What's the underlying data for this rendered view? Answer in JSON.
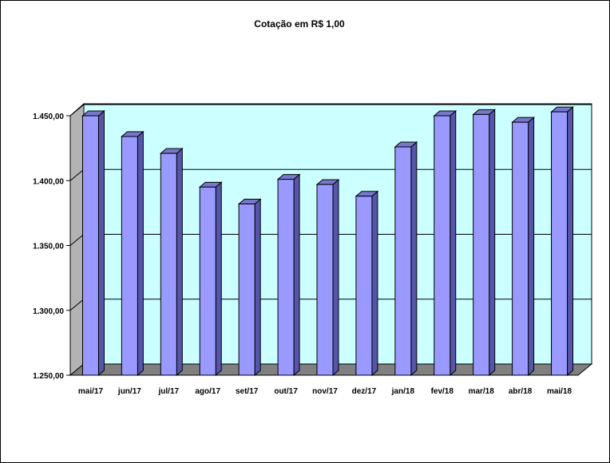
{
  "chart_data": {
    "type": "bar",
    "title": "Cotação em R$ 1,00",
    "categories": [
      "mai/17",
      "jun/17",
      "jul/17",
      "ago/17",
      "set/17",
      "out/17",
      "nov/17",
      "dez/17",
      "jan/18",
      "fev/18",
      "mar/18",
      "abr/18",
      "mai/18"
    ],
    "values": [
      1450,
      1434,
      1421,
      1395,
      1382,
      1401,
      1397,
      1388,
      1426,
      1450,
      1451,
      1445,
      1453
    ],
    "ylim": [
      1250,
      1450
    ],
    "yticks": [
      "1.250,00",
      "1.300,00",
      "1.350,00",
      "1.400,00",
      "1.450,00"
    ],
    "ytick_values": [
      1250,
      1300,
      1350,
      1400,
      1450
    ],
    "grid": true,
    "legend": "none",
    "colors": {
      "bar_front": "#9999ff",
      "bar_side": "#5555aa",
      "bar_top": "#7777cc",
      "wall": "#ccffff",
      "floor": "#808080",
      "left_wall": "#b3b3b3"
    }
  }
}
